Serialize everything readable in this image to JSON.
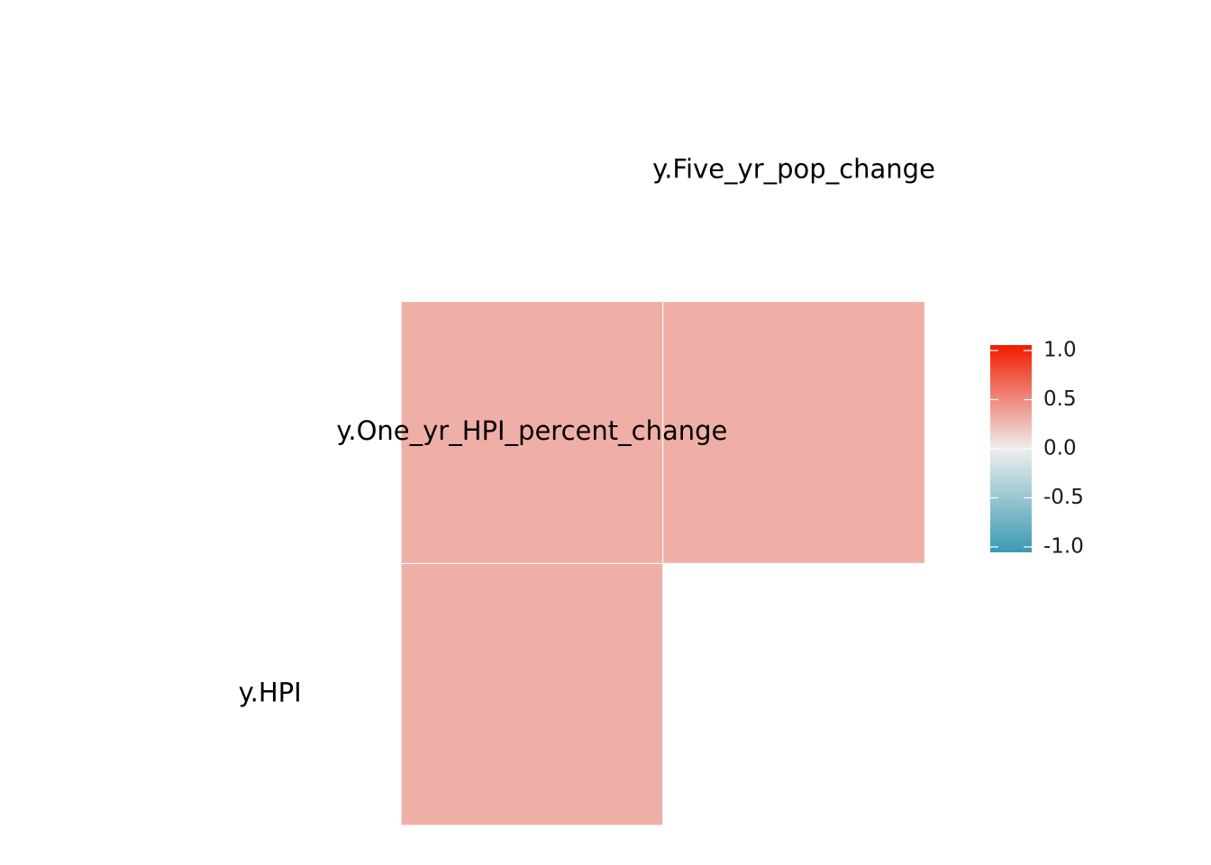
{
  "chart_data": {
    "type": "heatmap",
    "subtype": "lower-triangle correlation matrix",
    "variables": [
      "y.HPI",
      "y.One_yr_HPI_percent_change",
      "y.Five_yr_pop_change"
    ],
    "cells": [
      {
        "row": "y.One_yr_HPI_percent_change",
        "col": "y.HPI",
        "value": 0.3
      },
      {
        "row": "y.Five_yr_pop_change",
        "col": "y.HPI",
        "value": 0.3
      },
      {
        "row": "y.Five_yr_pop_change",
        "col": "y.One_yr_HPI_percent_change",
        "value": 0.3
      }
    ],
    "color_scale": {
      "limits": [
        -1,
        1
      ],
      "low": "#3A9AB2",
      "mid": "#EEEEEE",
      "high": "#F11B00",
      "ticks": [
        "1.0",
        "0.5",
        "0.0",
        "-0.5",
        "-1.0"
      ],
      "tick_values": [
        1,
        0.5,
        0,
        -0.5,
        -1
      ]
    },
    "legend_position": "right",
    "grid": false,
    "title": "",
    "xlabel": "",
    "ylabel": ""
  }
}
